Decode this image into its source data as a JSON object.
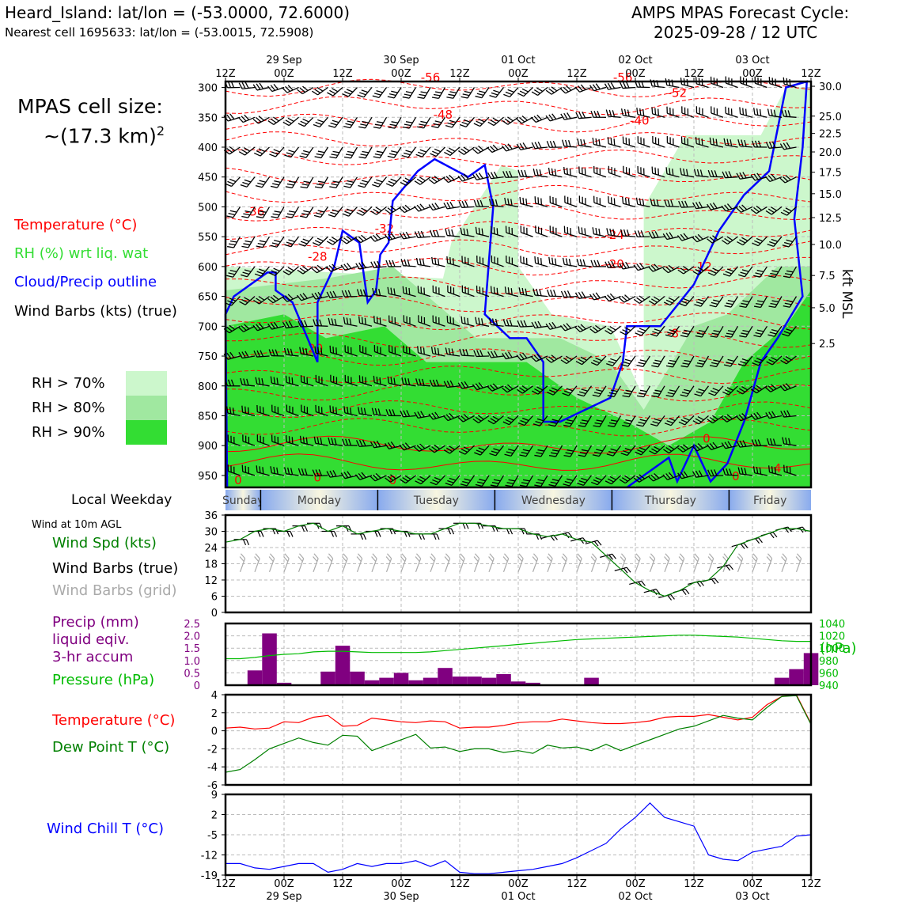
{
  "header": {
    "station_line": "Heard_Island: lat/lon = (-53.0000, 72.6000)",
    "cell_line": "Nearest cell 1695633: lat/lon = (-53.0015, 72.5908)",
    "cycle_line1": "AMPS MPAS Forecast Cycle:",
    "cycle_line2": "2025-09-28 / 12 UTC"
  },
  "cell_size": {
    "line1": "MPAS cell size:",
    "line2_base": "~(17.3 km)",
    "line2_sup": "2"
  },
  "colors": {
    "temperature": "#ff0000",
    "rh": "#22cc22",
    "cloud_outline": "#0000ff",
    "wind_barbs": "#000000",
    "grid_barbs": "#aaaaaa",
    "wind_speed": "#008000",
    "precip": "#800080",
    "pressure": "#00bb00",
    "dewpoint": "#008000",
    "wind_chill": "#0000ff",
    "rh70": "#ccf7cc",
    "rh80": "#a0e8a0",
    "rh90": "#33dd33"
  },
  "time_axis": {
    "ticks": [
      "12Z",
      "00Z",
      "12Z",
      "00Z",
      "12Z",
      "00Z",
      "12Z",
      "00Z",
      "12Z",
      "00Z",
      "12Z"
    ],
    "dates": [
      {
        "idx": 1,
        "label": "29 Sep"
      },
      {
        "idx": 3,
        "label": "30 Sep"
      },
      {
        "idx": 5,
        "label": "01 Oct"
      },
      {
        "idx": 7,
        "label": "02 Oct"
      },
      {
        "idx": 9,
        "label": "03 Oct"
      }
    ]
  },
  "weekday": {
    "label": "Local Weekday",
    "days": [
      "Sunday",
      "Monday",
      "Tuesday",
      "Wednesday",
      "Thursday",
      "Friday"
    ]
  },
  "chart_data": [
    {
      "type": "heatmap",
      "description_legend": [
        "Temperature (°C)",
        "RH (%) wrt liq. wat",
        "Cloud/Precip outline",
        "Wind Barbs (kts) (true)"
      ],
      "rh_legend": [
        "RH > 70%",
        "RH > 80%",
        "RH > 90%"
      ],
      "ylabel_right": "kft MSL",
      "pressure_ticks": [
        300,
        350,
        400,
        450,
        500,
        550,
        600,
        650,
        700,
        750,
        800,
        850,
        900,
        950
      ],
      "height_ticks": [
        {
          "v": "30.0",
          "p": 298
        },
        {
          "v": "25.0",
          "p": 348
        },
        {
          "v": "22.5",
          "p": 377
        },
        {
          "v": "20.0",
          "p": 408
        },
        {
          "v": "17.5",
          "p": 442
        },
        {
          "v": "15.0",
          "p": 478
        },
        {
          "v": "12.5",
          "p": 518
        },
        {
          "v": "10.0",
          "p": 563
        },
        {
          "v": "7.5",
          "p": 615
        },
        {
          "v": "5.0",
          "p": 669
        },
        {
          "v": "2.5",
          "p": 729
        }
      ],
      "temperature_contour_labels": [
        {
          "t": "-56",
          "x": 2.45,
          "p": 290
        },
        {
          "t": "-56",
          "x": 4.75,
          "p": 290
        },
        {
          "t": "-52",
          "x": 5.4,
          "p": 316
        },
        {
          "t": "-48",
          "x": 2.6,
          "p": 352
        },
        {
          "t": "-40",
          "x": 4.95,
          "p": 362
        },
        {
          "t": "-36",
          "x": 0.35,
          "p": 515
        },
        {
          "t": "-32",
          "x": 1.9,
          "p": 543
        },
        {
          "t": "-24",
          "x": 4.65,
          "p": 554
        },
        {
          "t": "-20",
          "x": 4.65,
          "p": 603
        },
        {
          "t": "-28",
          "x": 1.1,
          "p": 590
        },
        {
          "t": "-12",
          "x": 5.7,
          "p": 607
        },
        {
          "t": "-8",
          "x": 5.35,
          "p": 719
        },
        {
          "t": "-4",
          "x": 4.7,
          "p": 775
        },
        {
          "t": "-20",
          "x": 1.05,
          "p": 744
        },
        {
          "t": "0",
          "x": 0.15,
          "p": 965
        },
        {
          "t": "0",
          "x": 1.1,
          "p": 960
        },
        {
          "t": "0",
          "x": 2.0,
          "p": 965
        },
        {
          "t": "0",
          "x": 5.75,
          "p": 895
        },
        {
          "t": "0",
          "x": 6.1,
          "p": 958
        },
        {
          "t": "4",
          "x": 6.6,
          "p": 945
        }
      ]
    },
    {
      "type": "line",
      "label": "Wind at 10m AGL",
      "series": [
        {
          "name": "Wind Spd (kts)",
          "values": [
            26,
            27,
            30,
            31,
            30,
            32,
            33,
            30,
            32,
            29,
            30,
            31,
            30,
            29,
            29,
            31,
            33,
            33,
            32,
            31,
            31,
            29,
            28,
            29,
            27,
            26,
            21,
            16,
            11,
            8,
            6,
            8,
            11,
            12,
            17,
            25,
            27,
            29,
            31,
            31,
            30
          ]
        }
      ],
      "legend": [
        "Wind Spd (kts)",
        "Wind Barbs (true)",
        "Wind Barbs (grid)"
      ],
      "yticks": [
        0,
        6,
        12,
        18,
        24,
        30,
        36
      ],
      "ylim": [
        0,
        36
      ]
    },
    {
      "type": "bar",
      "legend": [
        "Precip (mm)",
        "liquid eqiv.",
        "3-hr accum",
        "Pressure (hPa)"
      ],
      "precip": [
        0,
        0,
        0.6,
        2.1,
        0.1,
        0,
        0,
        0.55,
        1.6,
        0.55,
        0.2,
        0.3,
        0.5,
        0.2,
        0.3,
        0.7,
        0.35,
        0.35,
        0.3,
        0.45,
        0.15,
        0.1,
        0,
        0,
        0,
        0.3,
        0,
        0,
        0,
        0,
        0,
        0,
        0,
        0,
        0,
        0,
        0,
        0,
        0.3,
        0.65,
        1.3
      ],
      "pressure": [
        983,
        983,
        985,
        988,
        990,
        991,
        994,
        995,
        995,
        994,
        993,
        993,
        993,
        993,
        994,
        996,
        998,
        1000,
        1002,
        1004,
        1006,
        1008,
        1010,
        1012,
        1014,
        1015,
        1016,
        1017,
        1018,
        1019,
        1020,
        1021,
        1021,
        1020,
        1019,
        1018,
        1016,
        1014,
        1012,
        1011,
        1011
      ],
      "yticks_left": [
        "0",
        "0.5",
        "1.0",
        "1.5",
        "2.0",
        "2.5"
      ],
      "yticks_right": [
        "940",
        "960",
        "980",
        "1000",
        "1020",
        "1040"
      ],
      "ylabel_right": "(hPa)",
      "ylim_left": [
        0,
        2.5
      ],
      "ylim_right": [
        940,
        1040
      ]
    },
    {
      "type": "line",
      "series": [
        {
          "name": "Temperature (°C)",
          "values": [
            0.3,
            0.4,
            0.2,
            0.3,
            1.0,
            0.9,
            1.5,
            1.7,
            0.5,
            0.6,
            1.4,
            1.2,
            1.0,
            0.9,
            1.1,
            1.0,
            0.3,
            0.4,
            0.4,
            0.6,
            0.9,
            1.0,
            1.0,
            1.3,
            1.1,
            0.9,
            0.8,
            0.8,
            0.9,
            1.1,
            1.5,
            1.6,
            1.6,
            1.8,
            1.5,
            1.2,
            1.5,
            2.9,
            3.8,
            4.0,
            0.8
          ]
        },
        {
          "name": "Dew Point T (°C)",
          "values": [
            -4.6,
            -4.3,
            -3.2,
            -2.0,
            -1.4,
            -0.8,
            -1.3,
            -1.6,
            -0.5,
            -0.6,
            -2.2,
            -1.6,
            -1.0,
            -0.4,
            -1.9,
            -1.8,
            -2.3,
            -2.0,
            -2.0,
            -2.4,
            -2.2,
            -2.5,
            -1.6,
            -1.9,
            -1.8,
            -2.2,
            -1.5,
            -2.2,
            -1.6,
            -1.0,
            -0.4,
            0.2,
            0.5,
            1.1,
            1.7,
            1.4,
            1.2,
            2.6,
            3.8,
            3.9,
            0.7
          ]
        }
      ],
      "yticks": [
        -6,
        -4,
        -2,
        0,
        2,
        4
      ],
      "ylim": [
        -6,
        4
      ]
    },
    {
      "type": "line",
      "series": [
        {
          "name": "Wind Chill T (°C)",
          "values": [
            -15,
            -15,
            -16.5,
            -17,
            -16,
            -15,
            -15,
            -18,
            -17,
            -15,
            -16,
            -15,
            -15,
            -14,
            -16,
            -14,
            -18,
            -18.5,
            -18.5,
            -18,
            -17.5,
            -17,
            -16,
            -15,
            -13,
            -10.5,
            -8,
            -3,
            1,
            6,
            1,
            -0.5,
            -2,
            -12,
            -13.5,
            -14,
            -11,
            -10,
            -9,
            -5.5,
            -5
          ]
        }
      ],
      "yticks": [
        -19,
        -12,
        -5,
        2,
        9
      ],
      "ylim": [
        -19,
        9
      ]
    }
  ]
}
